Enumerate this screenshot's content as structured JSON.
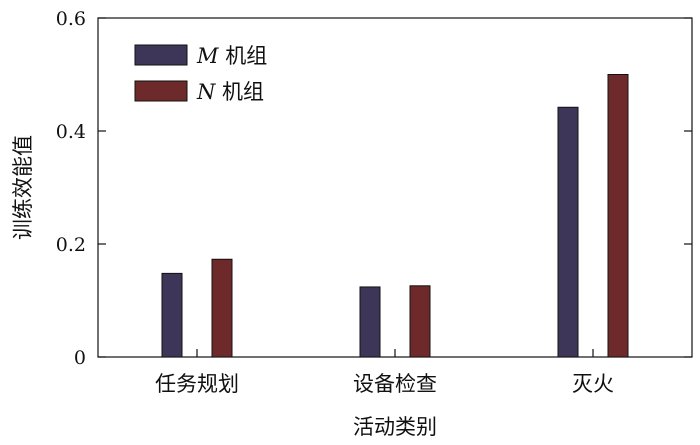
{
  "chart_data": {
    "type": "bar",
    "categories": [
      "任务规划",
      "设备检查",
      "灭火"
    ],
    "series": [
      {
        "name": "M 机组",
        "name_letter": "M",
        "name_text": "机组",
        "values": [
          0.148,
          0.124,
          0.442
        ],
        "color": "#3e3658"
      },
      {
        "name": "N 机组",
        "name_letter": "N",
        "name_text": "机组",
        "values": [
          0.173,
          0.126,
          0.5
        ],
        "color": "#6e2a2a"
      }
    ],
    "xlabel": "活动类别",
    "ylabel": "训练效能值",
    "ylim": [
      0,
      0.6
    ],
    "yticks": [
      "0",
      "0.2",
      "0.4",
      "0.6"
    ],
    "ytick_values": [
      0,
      0.2,
      0.4,
      0.6
    ],
    "legend_position": "top-left",
    "grid": false
  }
}
